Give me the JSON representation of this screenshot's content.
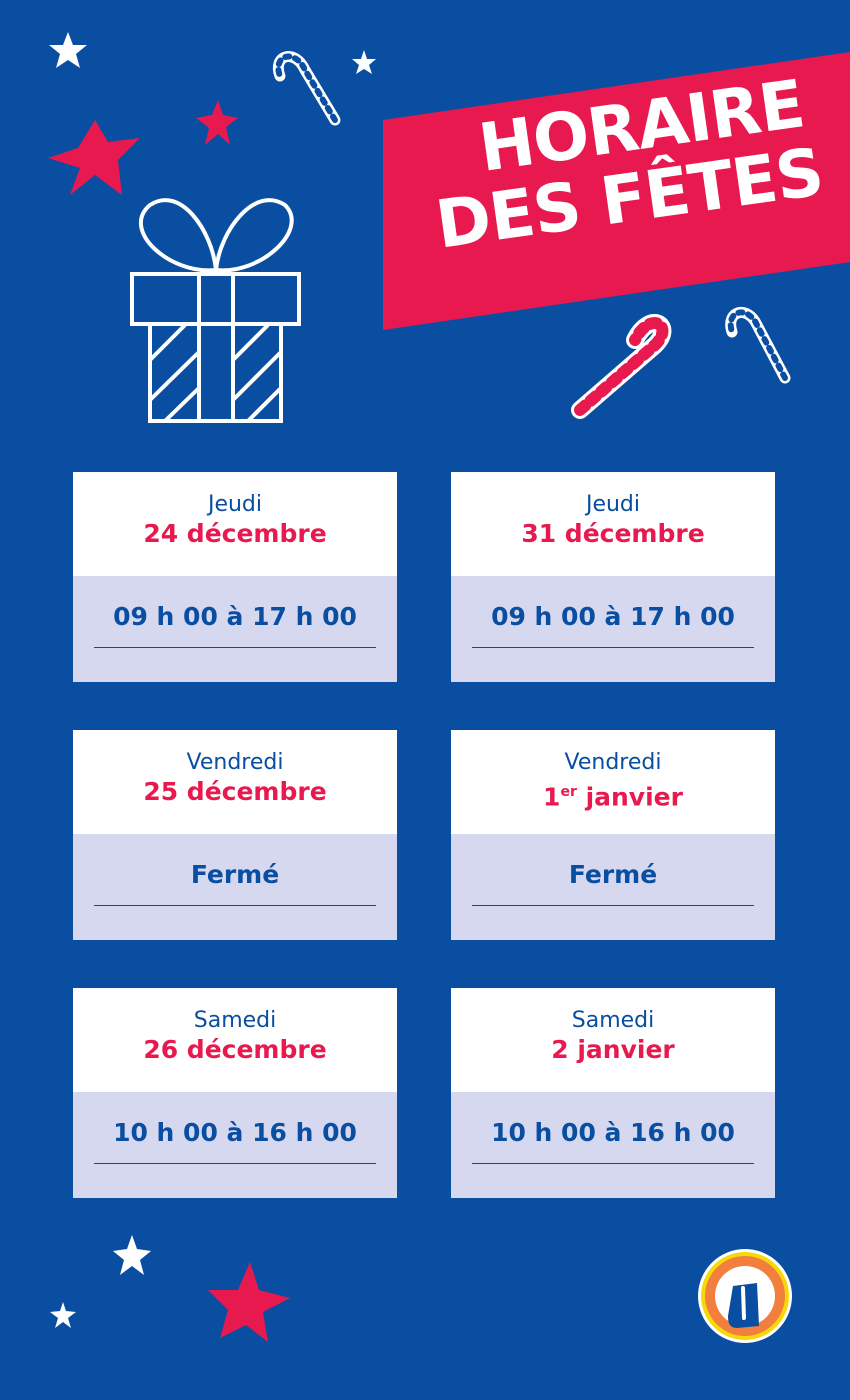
{
  "title": {
    "line1": "HORAIRE",
    "line2": "DES FÊTES"
  },
  "colors": {
    "background": "#0a4ea2",
    "accent": "#e8194f",
    "card_bottom": "#d5d8ef",
    "text": "#0a4ea2"
  },
  "schedule": [
    {
      "day": "Jeudi",
      "date": "24 décembre",
      "hours": "09 h 00 à 17 h 00"
    },
    {
      "day": "Jeudi",
      "date": "31 décembre",
      "hours": "09 h 00 à 17 h 00"
    },
    {
      "day": "Vendredi",
      "date": "25 décembre",
      "hours": "Fermé"
    },
    {
      "day": "Vendredi",
      "date_num": "1",
      "date_sup": "er",
      "date_rest": " janvier",
      "hours": "Fermé"
    },
    {
      "day": "Samedi",
      "date": "26 décembre",
      "hours": "10 h 00 à 16 h 00"
    },
    {
      "day": "Samedi",
      "date": "2 janvier",
      "hours": "10 h 00 à 16 h 00"
    }
  ],
  "logo": {
    "letter": "U"
  }
}
